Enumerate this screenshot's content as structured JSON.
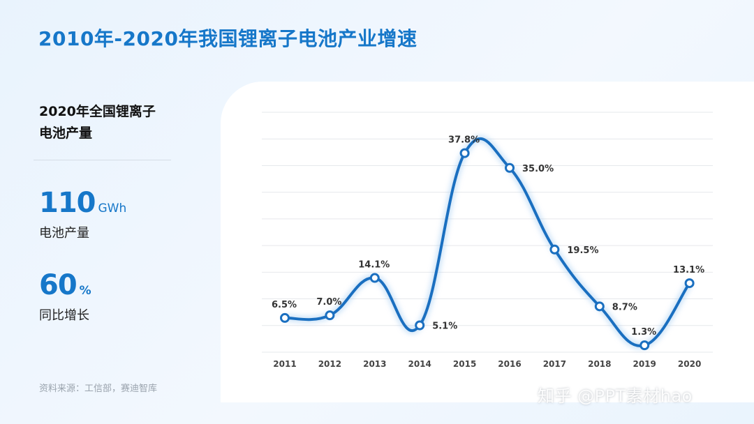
{
  "title": "2010年-2020年我国锂离子电池产业增速",
  "summary": {
    "heading_line1": "2020年全国锂离子",
    "heading_line2": "电池产量",
    "stats": [
      {
        "value": "110",
        "unit": "GWh",
        "label": "电池产量"
      },
      {
        "value": "60",
        "unit": "%",
        "label": "同比增长"
      }
    ]
  },
  "source": "资料来源：工信部，赛迪智库",
  "watermark": "知乎 @PPT素材hao",
  "colors": {
    "accent": "#1677c9",
    "line": "#1a6fc0",
    "grid": "#e6e8eb"
  },
  "chart_data": {
    "type": "line",
    "categories": [
      "2011",
      "2012",
      "2013",
      "2014",
      "2015",
      "2016",
      "2017",
      "2018",
      "2019",
      "2020"
    ],
    "series": [
      {
        "values": [
          6.5,
          7.0,
          14.1,
          5.1,
          37.8,
          35.0,
          19.5,
          8.7,
          1.3,
          13.1
        ],
        "labels": [
          "6.5%",
          "7.0%",
          "14.1%",
          "5.1%",
          "37.8%",
          "35.0%",
          "19.5%",
          "8.7%",
          "1.3%",
          "13.1%"
        ]
      }
    ],
    "ylim": [
      0,
      45
    ],
    "grid": true,
    "smooth": true
  }
}
